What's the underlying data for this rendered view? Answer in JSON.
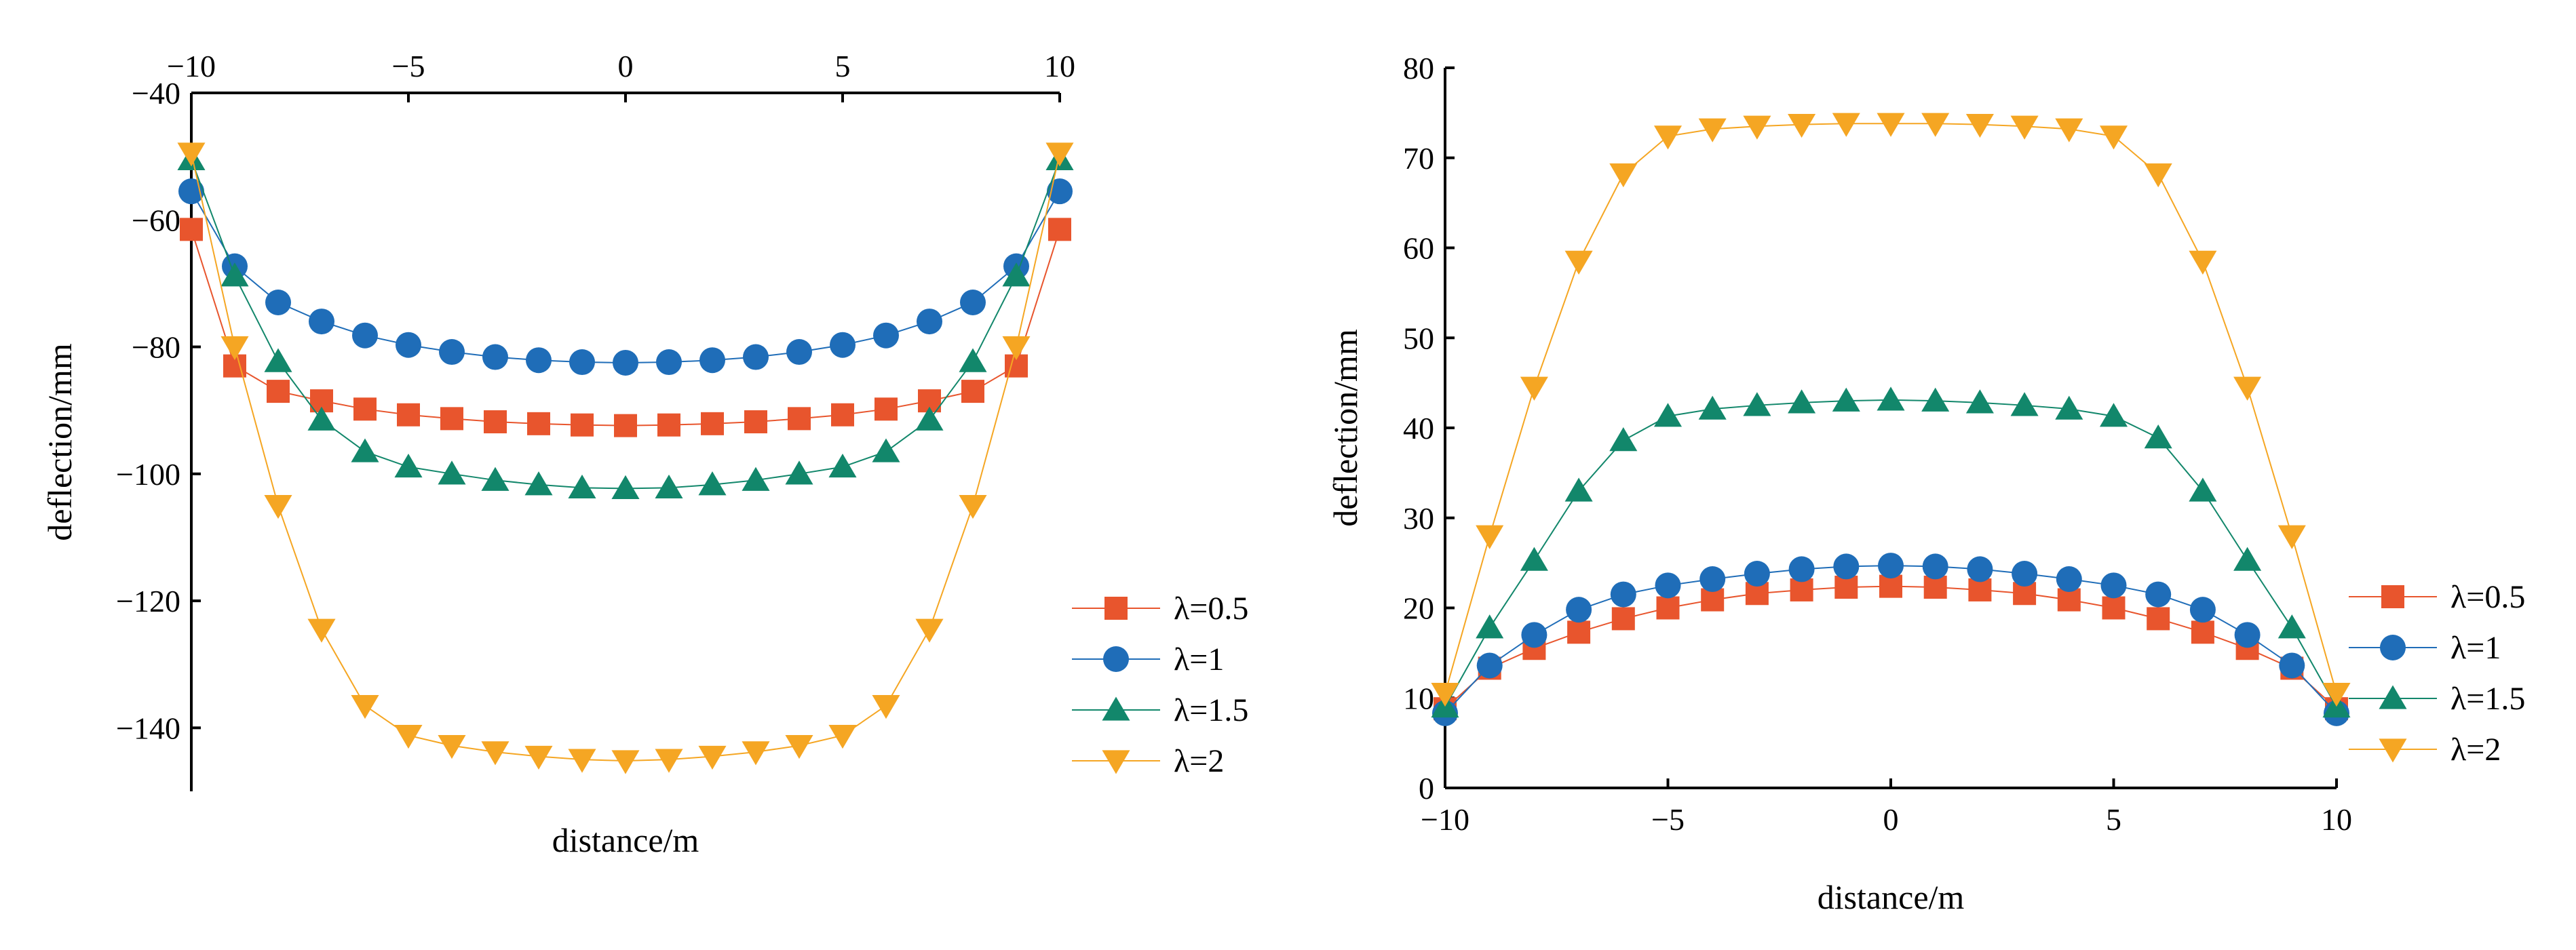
{
  "chart_data": [
    {
      "type": "line",
      "xlabel": "distance/m",
      "ylabel": "deflection/mm",
      "xlim": [
        -10,
        10
      ],
      "ylim": [
        -150,
        -40
      ],
      "x_axis_position": "top",
      "x_ticks": [
        -10,
        -5,
        0,
        5,
        10
      ],
      "y_ticks": [
        -40,
        -60,
        -80,
        -100,
        -120,
        -140
      ],
      "x_tick_labels": [
        "−10",
        "−5",
        "0",
        "5",
        "10"
      ],
      "y_tick_labels": [
        "−40",
        "−60",
        "−80",
        "−100",
        "−120",
        "−140"
      ],
      "grid": false,
      "legend_position": "bottom-right",
      "x": [
        -10,
        -9,
        -8,
        -7,
        -6,
        -5,
        -4,
        -3,
        -2,
        -1,
        0,
        1,
        2,
        3,
        4,
        5,
        6,
        7,
        8,
        9,
        10
      ],
      "series": [
        {
          "name": "λ=0.5",
          "color": "#E8552D",
          "marker": "square",
          "values": [
            -61.5,
            -83,
            -87,
            -88.5,
            -89.8,
            -90.7,
            -91.3,
            -91.8,
            -92.1,
            -92.3,
            -92.4,
            -92.3,
            -92.1,
            -91.8,
            -91.3,
            -90.7,
            -89.8,
            -88.5,
            -87,
            -83,
            -61.5
          ]
        },
        {
          "name": "λ=1",
          "color": "#1F6DB8",
          "marker": "circle",
          "values": [
            -55.5,
            -67.3,
            -73,
            -76,
            -78.2,
            -79.7,
            -80.8,
            -81.6,
            -82.1,
            -82.4,
            -82.5,
            -82.4,
            -82.1,
            -81.6,
            -80.8,
            -79.7,
            -78.2,
            -76,
            -73,
            -67.3,
            -55.5
          ]
        },
        {
          "name": "λ=1.5",
          "color": "#12876B",
          "marker": "triangle-up",
          "values": [
            -50.5,
            -68.8,
            -82.3,
            -91.5,
            -96.5,
            -98.9,
            -100,
            -101,
            -101.7,
            -102.2,
            -102.3,
            -102.2,
            -101.7,
            -101,
            -100,
            -98.9,
            -96.5,
            -91.5,
            -82.3,
            -68.8,
            -50.5
          ]
        },
        {
          "name": "λ=2",
          "color": "#F5A623",
          "marker": "triangle-down",
          "values": [
            -49.5,
            -80,
            -105,
            -124.5,
            -136.5,
            -141.2,
            -142.8,
            -143.8,
            -144.5,
            -145,
            -145.2,
            -145,
            -144.5,
            -143.8,
            -142.8,
            -141.2,
            -136.5,
            -124.5,
            -105,
            -80,
            -49.5
          ]
        }
      ]
    },
    {
      "type": "line",
      "xlabel": "distance/m",
      "ylabel": "deflection/mm",
      "xlim": [
        -10,
        10
      ],
      "ylim": [
        0,
        80
      ],
      "x_axis_position": "bottom",
      "x_ticks": [
        -10,
        -5,
        0,
        5,
        10
      ],
      "y_ticks": [
        0,
        10,
        20,
        30,
        40,
        50,
        60,
        70,
        80
      ],
      "x_tick_labels": [
        "−10",
        "−5",
        "0",
        "5",
        "10"
      ],
      "y_tick_labels": [
        "0",
        "10",
        "20",
        "30",
        "40",
        "50",
        "60",
        "70",
        "80"
      ],
      "grid": false,
      "legend_position": "right",
      "x": [
        -10,
        -9,
        -8,
        -7,
        -6,
        -5,
        -4,
        -3,
        -2,
        -1,
        0,
        1,
        2,
        3,
        4,
        5,
        6,
        7,
        8,
        9,
        10
      ],
      "series": [
        {
          "name": "λ=0.5",
          "color": "#E8552D",
          "marker": "square",
          "values": [
            8.8,
            13.3,
            15.5,
            17.3,
            18.8,
            20,
            20.9,
            21.6,
            22,
            22.3,
            22.4,
            22.3,
            22,
            21.6,
            20.9,
            20,
            18.8,
            17.3,
            15.5,
            13.3,
            8.8
          ]
        },
        {
          "name": "λ=1",
          "color": "#1F6DB8",
          "marker": "circle",
          "values": [
            8.3,
            13.6,
            17,
            19.8,
            21.5,
            22.5,
            23.2,
            23.8,
            24.3,
            24.6,
            24.7,
            24.6,
            24.3,
            23.8,
            23.2,
            22.5,
            21.5,
            19.8,
            17,
            13.6,
            8.3
          ]
        },
        {
          "name": "λ=1.5",
          "color": "#12876B",
          "marker": "triangle-up",
          "values": [
            9,
            17.8,
            25.3,
            33,
            38.6,
            41.3,
            42.1,
            42.5,
            42.8,
            43,
            43.1,
            43,
            42.8,
            42.5,
            42.1,
            41.3,
            38.9,
            33,
            25.3,
            17.8,
            9
          ]
        },
        {
          "name": "λ=2",
          "color": "#F5A623",
          "marker": "triangle-down",
          "values": [
            10.5,
            28,
            44.5,
            58.5,
            68.2,
            72.4,
            73.2,
            73.5,
            73.7,
            73.8,
            73.8,
            73.8,
            73.7,
            73.5,
            73.2,
            72.4,
            68.2,
            58.5,
            44.5,
            28,
            10.5
          ]
        }
      ]
    }
  ]
}
